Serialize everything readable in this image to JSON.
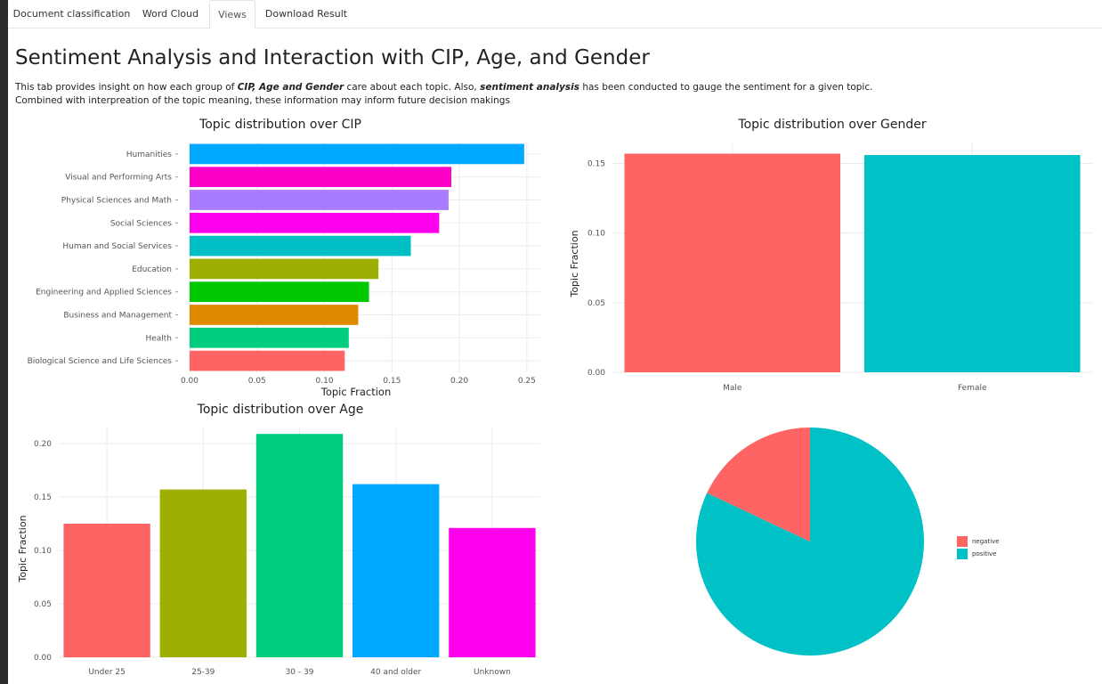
{
  "tabs": [
    {
      "label": "Document classification",
      "active": false
    },
    {
      "label": "Word Cloud",
      "active": false
    },
    {
      "label": "Views",
      "active": true
    },
    {
      "label": "Download Result",
      "active": false
    }
  ],
  "page": {
    "title": "Sentiment Analysis and Interaction with CIP, Age, and Gender",
    "intro1_a": "This tab provides insight on how each group of ",
    "intro1_b": "CIP, Age and Gender",
    "intro1_c": " care about each topic. Also, ",
    "intro1_d": "sentiment analysis",
    "intro1_e": " has been conducted to gauge the sentiment for a given topic.",
    "intro2": "Combined with interpreation of the topic meaning, these information may inform future decision makings"
  },
  "chart_data": [
    {
      "id": "cip",
      "type": "bar",
      "orientation": "horizontal",
      "title": "Topic distribution over CIP",
      "xlabel": "Topic Fraction",
      "ylabel": "",
      "xlim": [
        0,
        0.26
      ],
      "ticks": [
        0.0,
        0.05,
        0.1,
        0.15,
        0.2,
        0.25
      ],
      "tick_labels": [
        "0.00",
        "0.05",
        "0.10",
        "0.15",
        "0.20",
        "0.25"
      ],
      "categories": [
        "Humanities",
        "Visual and Performing Arts",
        "Physical Sciences and Math",
        "Social Sciences",
        "Human and Social Services",
        "Education",
        "Engineering and Applied Sciences",
        "Business and Management",
        "Health",
        "Biological Science and Life Sciences"
      ],
      "values": [
        0.248,
        0.194,
        0.192,
        0.185,
        0.164,
        0.14,
        0.133,
        0.125,
        0.118,
        0.115
      ],
      "colors": [
        "#00A9FF",
        "#FF00C8",
        "#A87BFF",
        "#FF00EE",
        "#00BFC4",
        "#9DAF00",
        "#00C800",
        "#E08A00",
        "#00CD7E",
        "#FF6464"
      ],
      "grid": true
    },
    {
      "id": "gender",
      "type": "bar",
      "title": "Topic distribution over Gender",
      "xlabel": "",
      "ylabel": "Topic Fraction",
      "ylim": [
        0,
        0.165
      ],
      "ticks": [
        0.0,
        0.05,
        0.1,
        0.15
      ],
      "tick_labels": [
        "0.00",
        "0.05",
        "0.10",
        "0.15"
      ],
      "categories": [
        "Male",
        "Female"
      ],
      "values": [
        0.157,
        0.156
      ],
      "colors": [
        "#FF6464",
        "#00C1C5"
      ],
      "grid": true
    },
    {
      "id": "age",
      "type": "bar",
      "title": "Topic distribution over Age",
      "xlabel": "",
      "ylabel": "Topic Fraction",
      "ylim": [
        0,
        0.215
      ],
      "ticks": [
        0.0,
        0.05,
        0.1,
        0.15,
        0.2
      ],
      "tick_labels": [
        "0.00",
        "0.05",
        "0.10",
        "0.15",
        "0.20"
      ],
      "categories": [
        "Under 25",
        "25-39",
        "30 - 39",
        "40 and older",
        "Unknown"
      ],
      "values": [
        0.125,
        0.157,
        0.209,
        0.162,
        0.121
      ],
      "colors": [
        "#FF6464",
        "#9DAF00",
        "#00CD7E",
        "#00A9FF",
        "#FF00EE"
      ],
      "grid": true
    },
    {
      "id": "sentiment",
      "type": "pie",
      "title": "",
      "labels": [
        "negative",
        "positive"
      ],
      "values": [
        0.18,
        0.82
      ],
      "colors": [
        "#FF6464",
        "#00C1C5"
      ],
      "legend": "right"
    }
  ]
}
